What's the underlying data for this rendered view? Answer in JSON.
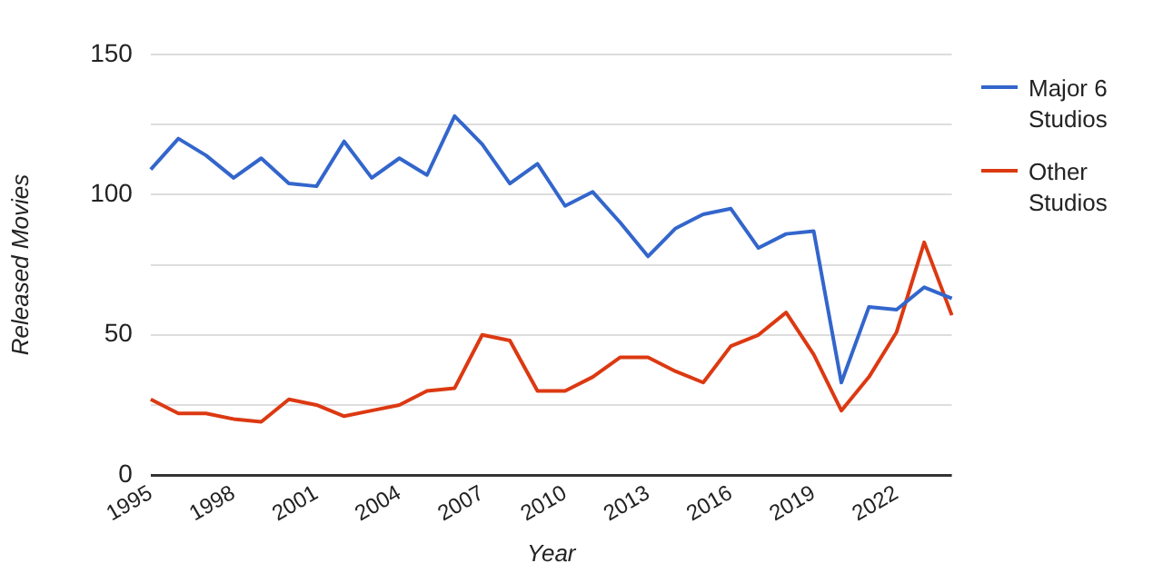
{
  "chart_data": {
    "type": "line",
    "xlabel": "Year",
    "ylabel": "Released Movies",
    "categories": [
      "1995",
      null,
      null,
      "1998",
      null,
      null,
      "2001",
      null,
      null,
      "2004",
      null,
      null,
      "2007",
      null,
      null,
      "2010",
      null,
      null,
      "2013",
      null,
      null,
      "2016",
      null,
      null,
      "2019",
      null,
      null,
      "2022",
      null,
      null
    ],
    "series": [
      {
        "name": "Major 6 Studios",
        "color": "#3366cc",
        "values": [
          109,
          120,
          114,
          106,
          113,
          104,
          103,
          119,
          106,
          113,
          107,
          128,
          118,
          104,
          111,
          96,
          101,
          90,
          78,
          88,
          93,
          95,
          81,
          86,
          87,
          33,
          60,
          59,
          67,
          63
        ]
      },
      {
        "name": "Other Studios",
        "color": "#dc3912",
        "values": [
          27,
          22,
          22,
          20,
          19,
          27,
          25,
          21,
          23,
          25,
          30,
          31,
          50,
          48,
          30,
          30,
          35,
          42,
          42,
          37,
          33,
          46,
          50,
          58,
          43,
          23,
          35,
          51,
          83,
          57
        ]
      }
    ],
    "ylim": [
      0,
      150
    ],
    "yticks": [
      0,
      {
        "value": 25,
        "label": null
      },
      50,
      {
        "value": 75,
        "label": null
      },
      100,
      {
        "value": 125,
        "label": null
      },
      150
    ],
    "grid": "y",
    "legend": "right",
    "marker": "none",
    "line_style": "solid"
  }
}
